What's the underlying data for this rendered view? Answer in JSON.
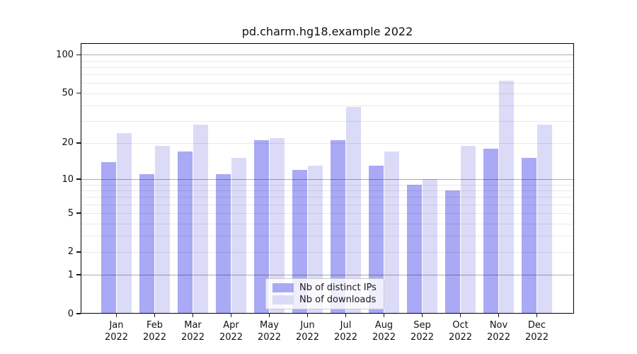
{
  "chart_data": {
    "type": "bar",
    "title": "pd.charm.hg18.example 2022",
    "categories": [
      "Jan",
      "Feb",
      "Mar",
      "Apr",
      "May",
      "Jun",
      "Jul",
      "Aug",
      "Sep",
      "Oct",
      "Nov",
      "Dec"
    ],
    "year": "2022",
    "series": [
      {
        "name": "Nb of distinct IPs",
        "color": "#a9a9f5",
        "values": [
          14,
          11,
          17,
          11,
          21,
          12,
          21,
          13,
          9,
          8,
          18,
          15
        ]
      },
      {
        "name": "Nb of downloads",
        "color": "#dbdbf8",
        "values": [
          24,
          19,
          28,
          15,
          22,
          13,
          39,
          17,
          10,
          19,
          63,
          28
        ]
      }
    ],
    "xlabel": "",
    "ylabel": "",
    "yscale": "log10(1+x)",
    "ylim": [
      0,
      120
    ],
    "yticks": [
      0,
      1,
      2,
      5,
      10,
      20,
      50,
      100
    ],
    "major_gridlines": [
      1,
      10,
      100
    ],
    "minor_gridlines": [
      2,
      3,
      4,
      5,
      6,
      7,
      8,
      9,
      20,
      30,
      40,
      50,
      60,
      70,
      80,
      90
    ],
    "grid": true,
    "legend_position": "lower center"
  }
}
